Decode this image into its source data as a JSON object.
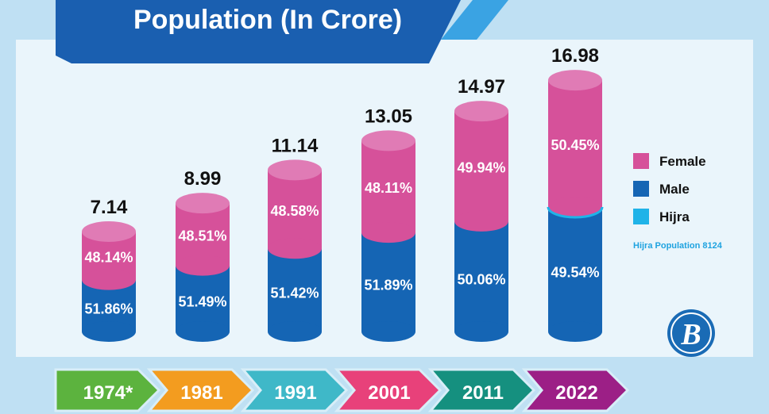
{
  "chart_data": {
    "type": "bar",
    "title": "Population (In Crore)",
    "categories": [
      "1974*",
      "1981",
      "1991",
      "2001",
      "2011",
      "2022"
    ],
    "totals": [
      7.14,
      8.99,
      11.14,
      13.05,
      14.97,
      16.98
    ],
    "series": [
      {
        "name": "Female",
        "color": "#d6519a",
        "values": [
          "48.14%",
          "48.51%",
          "48.58%",
          "48.11%",
          "49.94%",
          "50.45%"
        ]
      },
      {
        "name": "Male",
        "color": "#1565b4",
        "values": [
          "51.86%",
          "51.49%",
          "51.42%",
          "51.89%",
          "50.06%",
          "49.54%"
        ]
      },
      {
        "name": "Hijra",
        "color": "#1fb3e8",
        "values": [
          null,
          null,
          null,
          null,
          null,
          "0.01%"
        ]
      }
    ],
    "note": "Hijra Population 8124",
    "legend_position": "right",
    "year_colors": [
      "#5cb33e",
      "#f39c1f",
      "#3fb8c8",
      "#e8417a",
      "#15907f",
      "#9c1f86"
    ]
  }
}
